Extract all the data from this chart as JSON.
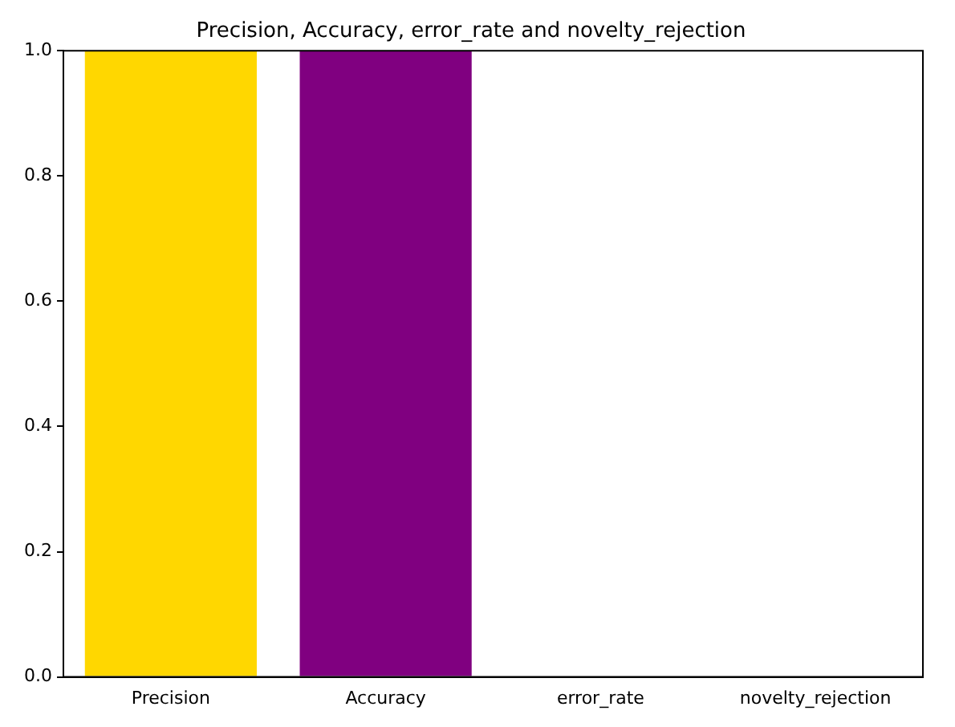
{
  "chart_data": {
    "type": "bar",
    "title": "Precision, Accuracy, error_rate and novelty_rejection",
    "categories": [
      "Precision",
      "Accuracy",
      "error_rate",
      "novelty_rejection"
    ],
    "values": [
      1.0,
      1.0,
      0.0,
      0.0
    ],
    "colors": [
      "#ffd700",
      "#800080",
      null,
      null
    ],
    "ylim": [
      0,
      1
    ],
    "yticks": [
      {
        "value": 0,
        "label": "0.0"
      },
      0.2,
      0.4,
      0.6,
      0.8,
      {
        "value": 1,
        "label": "1.0"
      }
    ],
    "grid": false,
    "legend": false
  }
}
